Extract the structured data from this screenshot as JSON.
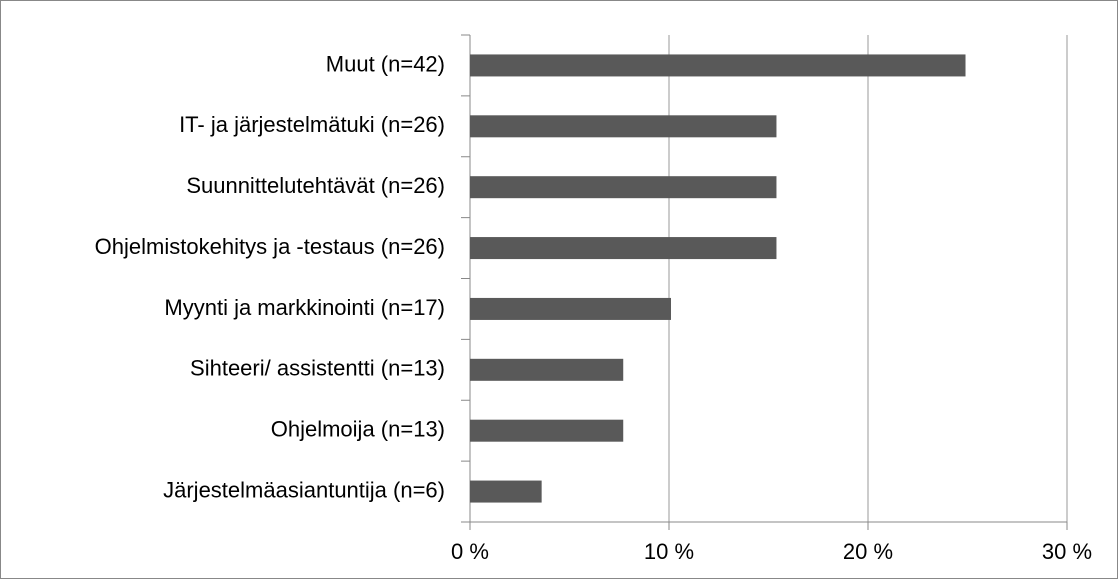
{
  "chart_data": {
    "type": "bar",
    "orientation": "horizontal",
    "categories": [
      "Muut (n=42)",
      "IT- ja järjestelmätuki (n=26)",
      "Suunnittelutehtävät (n=26)",
      "Ohjelmistokehitys ja -testaus (n=26)",
      "Myynti ja markkinointi (n=17)",
      "Sihteeri/ assistentti (n=13)",
      "Ohjelmoija (n=13)",
      "Järjestelmäasiantuntija (n=6)"
    ],
    "values": [
      24.9,
      15.4,
      15.4,
      15.4,
      10.1,
      7.7,
      7.7,
      3.6
    ],
    "color": "#595959",
    "xlim": [
      0,
      30
    ],
    "xticks": [
      {
        "value": 0,
        "label": "0 %"
      },
      {
        "value": 10,
        "label": "10 %"
      },
      {
        "value": 20,
        "label": "20 %"
      },
      {
        "value": 30,
        "label": "30 %"
      }
    ],
    "grid": true
  }
}
